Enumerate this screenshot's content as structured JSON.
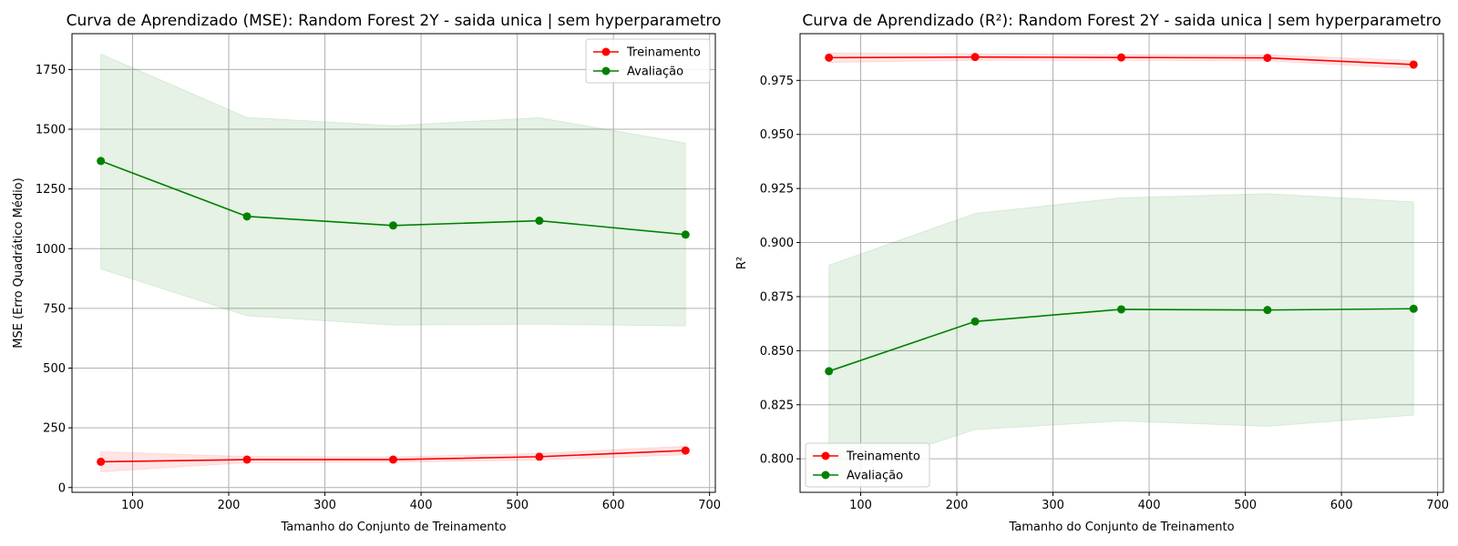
{
  "chart_data": [
    {
      "type": "line",
      "title": "Curva de Aprendizado (MSE): Random Forest 2Y - saida unica | sem hyperparametro",
      "xlabel": "Tamanho do Conjunto de Treinamento",
      "ylabel": "MSE (Erro Quadrático Médio)",
      "xlim": [
        37,
        706
      ],
      "ylim": [
        -20,
        1900
      ],
      "xticks": [
        100,
        200,
        300,
        400,
        500,
        600,
        700
      ],
      "yticks": [
        0,
        250,
        500,
        750,
        1000,
        1250,
        1500,
        1750
      ],
      "ytick_labels": [
        "0",
        "250",
        "500",
        "750",
        "1000",
        "1250",
        "1500",
        "1750"
      ],
      "grid": true,
      "legend_position": "upper right",
      "x": [
        67,
        219,
        371,
        523,
        675
      ],
      "series": [
        {
          "name": "Treinamento",
          "color": "#ff0000",
          "values": [
            108,
            117,
            117,
            129,
            155
          ],
          "band_upper": [
            150,
            130,
            128,
            143,
            173
          ],
          "band_lower": [
            66,
            104,
            106,
            115,
            137
          ],
          "band_color": "#ff0000"
        },
        {
          "name": "Avaliação",
          "color": "#008000",
          "values": [
            1367,
            1135,
            1097,
            1117,
            1059
          ],
          "band_upper": [
            1815,
            1549,
            1515,
            1548,
            1442
          ],
          "band_lower": [
            915,
            719,
            680,
            684,
            676
          ],
          "band_color": "#008000"
        }
      ]
    },
    {
      "type": "line",
      "title": "Curva de Aprendizado (R²): Random Forest 2Y - saida unica | sem hyperparametro",
      "xlabel": "Tamanho do Conjunto de Treinamento",
      "ylabel": "R²",
      "xlim": [
        37,
        706
      ],
      "ylim": [
        0.7845,
        0.9966
      ],
      "xticks": [
        100,
        200,
        300,
        400,
        500,
        600,
        700
      ],
      "yticks": [
        0.8,
        0.825,
        0.85,
        0.875,
        0.9,
        0.925,
        0.95,
        0.975
      ],
      "ytick_labels": [
        "0.800",
        "0.825",
        "0.850",
        "0.875",
        "0.900",
        "0.925",
        "0.950",
        "0.975"
      ],
      "grid": true,
      "legend_position": "lower left",
      "x": [
        67,
        219,
        371,
        523,
        675
      ],
      "series": [
        {
          "name": "Treinamento",
          "color": "#ff0000",
          "values": [
            0.9855,
            0.9858,
            0.9856,
            0.9854,
            0.9823
          ],
          "band_upper": [
            0.9877,
            0.9873,
            0.9869,
            0.9868,
            0.9842
          ],
          "band_lower": [
            0.9833,
            0.9843,
            0.9843,
            0.984,
            0.9804
          ],
          "band_color": "#ff0000"
        },
        {
          "name": "Avaliação",
          "color": "#008000",
          "values": [
            0.8405,
            0.8635,
            0.8691,
            0.8688,
            0.8694
          ],
          "band_upper": [
            0.8895,
            0.9135,
            0.9207,
            0.9226,
            0.9188
          ],
          "band_lower": [
            0.7915,
            0.8135,
            0.8175,
            0.815,
            0.8202
          ],
          "band_color": "#008000"
        }
      ]
    }
  ]
}
